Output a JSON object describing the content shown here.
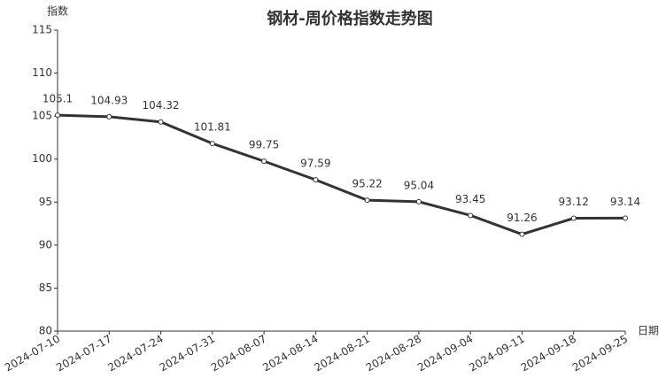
{
  "chart_data": {
    "type": "line",
    "title": "钢材-周价格指数走势图",
    "y_label": "指数",
    "x_label": "日期",
    "categories": [
      "2024-07-10",
      "2024-07-17",
      "2024-07-24",
      "2024-07-31",
      "2024-08-07",
      "2024-08-14",
      "2024-08-21",
      "2024-08-28",
      "2024-09-04",
      "2024-09-11",
      "2024-09-18",
      "2024-09-25"
    ],
    "values": [
      105.1,
      104.93,
      104.32,
      101.81,
      99.75,
      97.59,
      95.22,
      95.04,
      93.45,
      91.26,
      93.12,
      93.14
    ],
    "color": "#333333",
    "ylim": [
      80,
      115
    ],
    "yticks": [
      80,
      85,
      90,
      95,
      100,
      105,
      110,
      115
    ]
  }
}
